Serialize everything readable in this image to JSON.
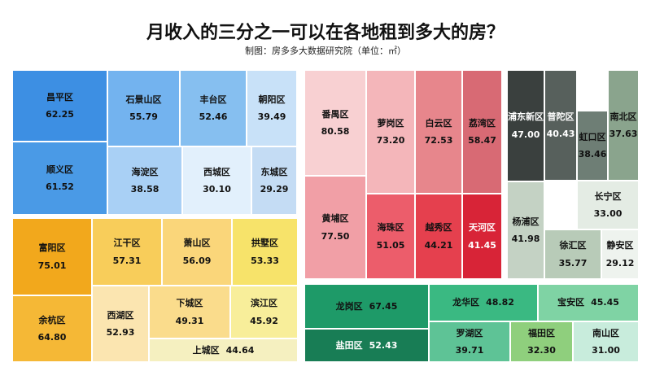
{
  "title": "月收入的三分之一可以在各地租到多大的房？",
  "subtitle": "制图：房多多大数据研究院（单位：㎡）",
  "chart_data": {
    "type": "treemap",
    "unit": "㎡",
    "groups": [
      {
        "items": [
          {
            "name": "昌平区",
            "value": "62.25",
            "color": "#3d8fe3"
          },
          {
            "name": "顺义区",
            "value": "61.52",
            "color": "#4a9ae6"
          },
          {
            "name": "石景山区",
            "value": "55.79",
            "color": "#73b3ef"
          },
          {
            "name": "丰台区",
            "value": "52.46",
            "color": "#86bff0"
          },
          {
            "name": "朝阳区",
            "value": "39.49",
            "color": "#c8e1f8"
          },
          {
            "name": "海淀区",
            "value": "38.58",
            "color": "#a9d0f5"
          },
          {
            "name": "西城区",
            "value": "30.10",
            "color": "#e2f0fc"
          },
          {
            "name": "东城区",
            "value": "29.29",
            "color": "#c4dcf4"
          }
        ]
      },
      {
        "items": [
          {
            "name": "富阳区",
            "value": "75.01",
            "color": "#f2a81c"
          },
          {
            "name": "余杭区",
            "value": "64.80",
            "color": "#f5b836"
          },
          {
            "name": "江干区",
            "value": "57.31",
            "color": "#f8cd5a"
          },
          {
            "name": "萧山区",
            "value": "56.09",
            "color": "#fad67a"
          },
          {
            "name": "拱墅区",
            "value": "53.33",
            "color": "#f7e36a"
          },
          {
            "name": "西湖区",
            "value": "52.93",
            "color": "#fbe5b0"
          },
          {
            "name": "下城区",
            "value": "49.31",
            "color": "#fadc8c"
          },
          {
            "name": "滨江区",
            "value": "45.92",
            "color": "#f8ee9a"
          },
          {
            "name": "上城区",
            "value": "44.64",
            "color": "#f5f0c0"
          }
        ]
      },
      {
        "items": [
          {
            "name": "番禺区",
            "value": "80.58",
            "color": "#f8d0d2"
          },
          {
            "name": "黄埔区",
            "value": "77.50",
            "color": "#f19fa6"
          },
          {
            "name": "萝岗区",
            "value": "73.20",
            "color": "#f4b6ba"
          },
          {
            "name": "白云区",
            "value": "72.53",
            "color": "#e7868c"
          },
          {
            "name": "荔湾区",
            "value": "58.47",
            "color": "#d86a74"
          },
          {
            "name": "海珠区",
            "value": "51.05",
            "color": "#ec5d6b"
          },
          {
            "name": "越秀区",
            "value": "44.21",
            "color": "#e5404e"
          },
          {
            "name": "天河区",
            "value": "41.45",
            "color": "#d82437"
          }
        ]
      },
      {
        "items": [
          {
            "name": "浦东新区",
            "value": "47.00",
            "color": "#3a403e"
          },
          {
            "name": "普陀区",
            "value": "40.43",
            "color": "#57605c"
          },
          {
            "name": "南北区",
            "value": "37.63",
            "color": "#8aa48d"
          },
          {
            "name": "虹口区",
            "value": "38.46",
            "color": "#6e7e75"
          },
          {
            "name": "杨浦区",
            "value": "41.98",
            "color": "#c4d2c4"
          },
          {
            "name": "长宁区",
            "value": "33.00",
            "color": "#e4ece4"
          },
          {
            "name": "徐汇区",
            "value": "35.77",
            "color": "#b8cbb8"
          },
          {
            "name": "静安区",
            "value": "29.12",
            "color": "#eef3ee"
          }
        ]
      },
      {
        "items": [
          {
            "name": "龙岗区",
            "value": "67.45",
            "color": "#1e9a68"
          },
          {
            "name": "盐田区",
            "value": "52.43",
            "color": "#187d55"
          },
          {
            "name": "龙华区",
            "value": "48.82",
            "color": "#3ab982"
          },
          {
            "name": "罗湖区",
            "value": "39.71",
            "color": "#5ec396"
          },
          {
            "name": "宝安区",
            "value": "45.45",
            "color": "#7fd3a4"
          },
          {
            "name": "福田区",
            "value": "32.30",
            "color": "#8fcf7d"
          },
          {
            "name": "南山区",
            "value": "31.00",
            "color": "#c8ecdc"
          }
        ]
      }
    ]
  }
}
